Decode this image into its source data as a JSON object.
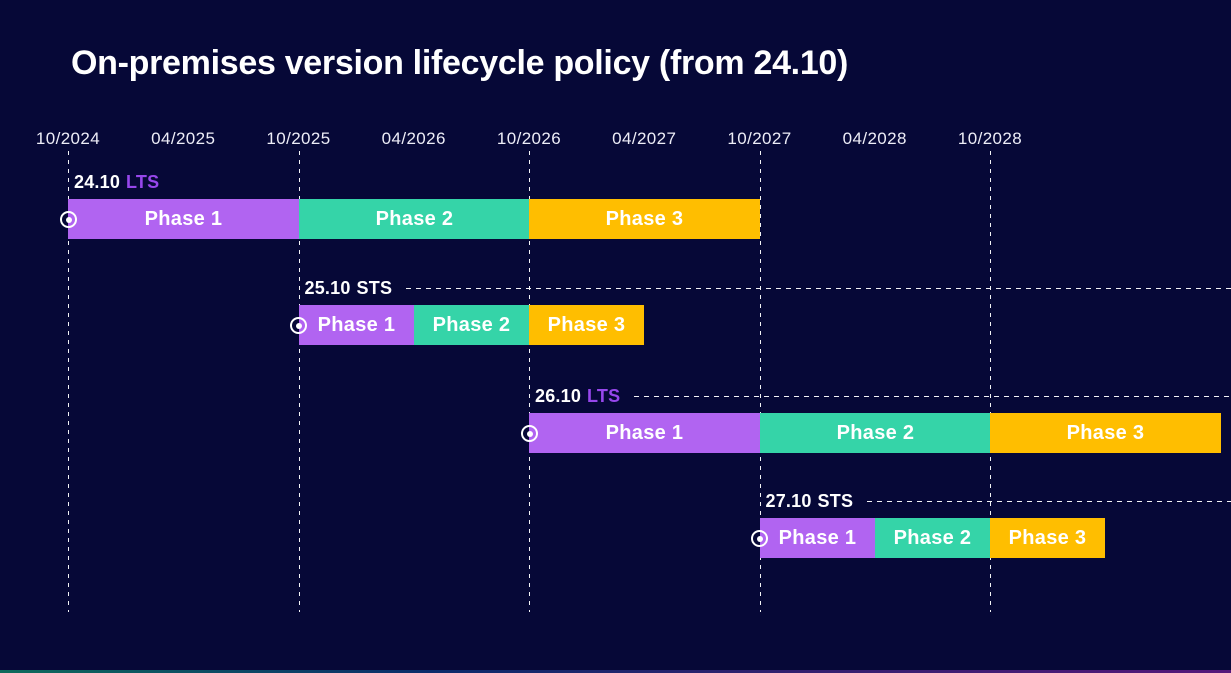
{
  "page": {
    "background_color": "#060837",
    "title": "On-premises version lifecycle policy (from 24.10)"
  },
  "chart_data": {
    "type": "gantt",
    "title": "On-premises version lifecycle policy (from 24.10)",
    "x_axis": {
      "tick_labels": [
        "10/2024",
        "04/2025",
        "10/2025",
        "04/2026",
        "10/2026",
        "04/2027",
        "10/2027",
        "04/2028",
        "10/2028"
      ],
      "gridlines_at": [
        "10/2024",
        "10/2025",
        "10/2026",
        "10/2027",
        "10/2028"
      ],
      "range_start": "10/2024",
      "range_end": "10/2029"
    },
    "phase_colors": {
      "Phase 1": "#B164F1",
      "Phase 2": "#35D4A8",
      "Phase 3": "#FFBE00"
    },
    "channel_colors": {
      "LTS": "#9747EC",
      "STS": "#FFFFFF"
    },
    "releases": [
      {
        "version": "24.10",
        "channel": "LTS",
        "start_marker": "10/2024",
        "dashed_guide": false,
        "phases": [
          {
            "label": "Phase 1",
            "start": "10/2024",
            "end": "10/2025"
          },
          {
            "label": "Phase 2",
            "start": "10/2025",
            "end": "10/2026"
          },
          {
            "label": "Phase 3",
            "start": "10/2026",
            "end": "10/2027"
          }
        ]
      },
      {
        "version": "25.10",
        "channel": "STS",
        "start_marker": "10/2025",
        "dashed_guide": true,
        "phases": [
          {
            "label": "Phase 1",
            "start": "10/2025",
            "end": "04/2026"
          },
          {
            "label": "Phase 2",
            "start": "04/2026",
            "end": "10/2026"
          },
          {
            "label": "Phase 3",
            "start": "10/2026",
            "end": "04/2027"
          }
        ]
      },
      {
        "version": "26.10",
        "channel": "LTS",
        "start_marker": "10/2026",
        "dashed_guide": true,
        "phases": [
          {
            "label": "Phase 1",
            "start": "10/2026",
            "end": "10/2027"
          },
          {
            "label": "Phase 2",
            "start": "10/2027",
            "end": "10/2028"
          },
          {
            "label": "Phase 3",
            "start": "10/2028",
            "end": "10/2029"
          }
        ]
      },
      {
        "version": "27.10",
        "channel": "STS",
        "start_marker": "10/2027",
        "dashed_guide": true,
        "phases": [
          {
            "label": "Phase 1",
            "start": "10/2027",
            "end": "04/2028"
          },
          {
            "label": "Phase 2",
            "start": "04/2028",
            "end": "10/2028"
          },
          {
            "label": "Phase 3",
            "start": "10/2028",
            "end": "04/2029"
          }
        ]
      }
    ],
    "footer_gradient": [
      "#0E6B5C",
      "#0B2C6B",
      "#33206F",
      "#55187A"
    ]
  }
}
